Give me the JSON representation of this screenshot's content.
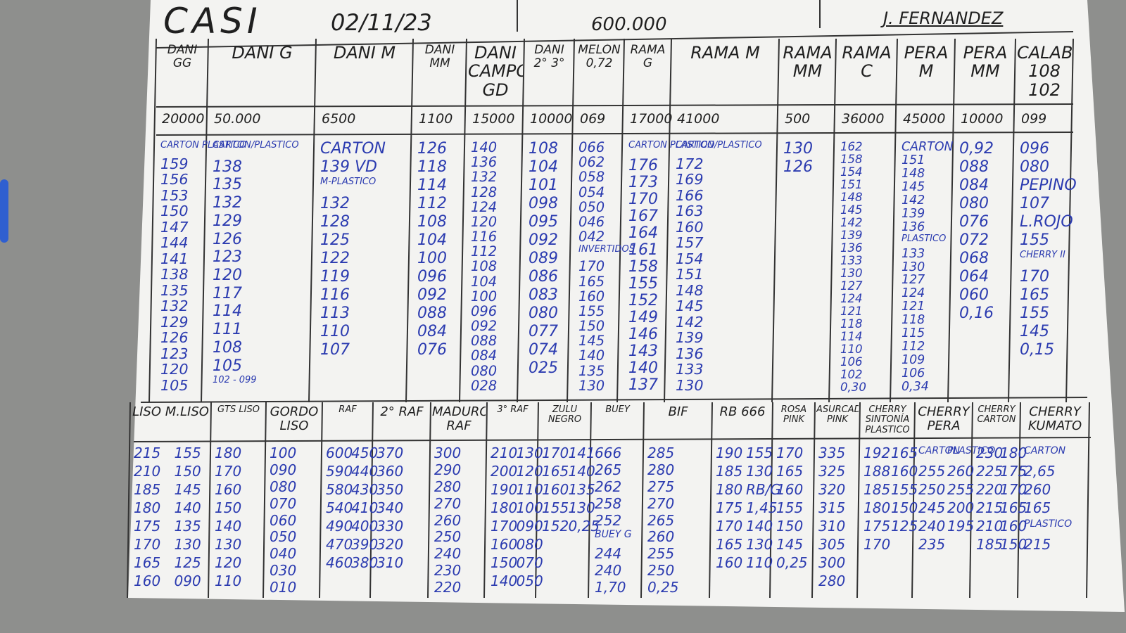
{
  "header": {
    "title": "CASI",
    "date": "02/11/23",
    "total": "600.000",
    "name": "J. FERNANDEZ"
  },
  "top_columns": [
    {
      "label": "DANI GG",
      "amount": "20000",
      "items": [
        "CARTON PLASTICO",
        "159",
        "156",
        "153",
        "150",
        "147",
        "144",
        "141",
        "138",
        "135",
        "132",
        "129",
        "126",
        "123",
        "120",
        "105"
      ]
    },
    {
      "label": "DANI G",
      "amount": "50.000",
      "items": [
        "CARTON/PLASTICO",
        "138",
        "135",
        "132",
        "129",
        "126",
        "123",
        "120",
        "117",
        "114",
        "111",
        "108",
        "105",
        "102 - 099"
      ]
    },
    {
      "label": "DANI M",
      "amount": "6500",
      "items": [
        "CARTON",
        "139 VD",
        "M-PLASTICO",
        "132",
        "128",
        "125",
        "122",
        "119",
        "116",
        "113",
        "110",
        "107"
      ]
    },
    {
      "label": "DANI MM",
      "amount": "1100",
      "items": [
        "126",
        "118",
        "114",
        "112",
        "108",
        "104",
        "100",
        "096",
        "092",
        "088",
        "084",
        "076"
      ]
    },
    {
      "label": "DANI CAMPO GD",
      "amount": "15000",
      "items": [
        "140",
        "136",
        "132",
        "128",
        "124",
        "120",
        "116",
        "112",
        "108",
        "104",
        "100",
        "096",
        "092",
        "088",
        "084",
        "080",
        "028"
      ]
    },
    {
      "label": "DANI 2° 3°",
      "amount": "10000",
      "items": [
        "108",
        "104",
        "101",
        "098",
        "095",
        "092",
        "089",
        "086",
        "083",
        "080",
        "077",
        "074",
        "025"
      ]
    },
    {
      "label": "MELÓN 0,72",
      "amount": "069",
      "items": [
        "066",
        "062",
        "058",
        "054",
        "050",
        "046",
        "042",
        "INVERTIDOS",
        "170",
        "165",
        "160",
        "155",
        "150",
        "145",
        "140",
        "135",
        "130"
      ]
    },
    {
      "label": "RAMA G",
      "amount": "17000",
      "items": [
        "CARTON PLASTICO",
        "176",
        "173",
        "170",
        "167",
        "164",
        "161",
        "158",
        "155",
        "152",
        "149",
        "146",
        "143",
        "140",
        "137"
      ]
    },
    {
      "label": "RAMA M",
      "amount": "41000",
      "items": [
        "CARTON/PLASTICO",
        "172",
        "169",
        "166",
        "163",
        "160",
        "157",
        "154",
        "151",
        "148",
        "145",
        "142",
        "139",
        "136",
        "133",
        "130"
      ]
    },
    {
      "label": "RAMA MM",
      "amount": "500",
      "items": [
        "130",
        "126"
      ]
    },
    {
      "label": "RAMA C",
      "amount": "36000",
      "items": [
        "162",
        "158",
        "154",
        "151",
        "148",
        "145",
        "142",
        "139",
        "136",
        "133",
        "130",
        "127",
        "124",
        "121",
        "118",
        "114",
        "110",
        "106",
        "102",
        "0,30"
      ]
    },
    {
      "label": "PERA M",
      "amount": "45000",
      "items": [
        "CARTON",
        "151",
        "148",
        "145",
        "142",
        "139",
        "136",
        "PLASTICO",
        "133",
        "130",
        "127",
        "124",
        "121",
        "118",
        "115",
        "112",
        "109",
        "106",
        "0,34"
      ]
    },
    {
      "label": "PERA MM",
      "amount": "10000",
      "items": [
        "0,92",
        "088",
        "084",
        "080",
        "076",
        "072",
        "068",
        "064",
        "060",
        "0,16"
      ]
    },
    {
      "label": "CALABACÍN 108 102",
      "amount": "099",
      "items": [
        "096",
        "080",
        "PEPINO",
        "107",
        "L.ROJO",
        "155",
        "CHERRY II",
        "170",
        "165",
        "155",
        "145",
        "0,15"
      ]
    }
  ],
  "bottom_columns": [
    {
      "label": "LISO M.LISO",
      "items": [
        "215",
        "210",
        "185",
        "180",
        "175",
        "170",
        "165",
        "160",
        "155",
        "150",
        "145",
        "140",
        "135",
        "130",
        "125",
        "090"
      ]
    },
    {
      "label": "GTS LISO",
      "items": [
        "180",
        "170",
        "160",
        "150",
        "140",
        "130",
        "120",
        "110"
      ]
    },
    {
      "label": "GORDO LISO",
      "items": [
        "100",
        "090",
        "080",
        "070",
        "060",
        "050",
        "040",
        "030",
        "010"
      ]
    },
    {
      "label": "RAF",
      "items": [
        "600",
        "590",
        "580",
        "540",
        "490",
        "470",
        "460",
        "450",
        "440",
        "430",
        "410",
        "400",
        "390",
        "380"
      ]
    },
    {
      "label": "2° RAF",
      "items": [
        "370",
        "360",
        "350",
        "340",
        "330",
        "320",
        "310"
      ]
    },
    {
      "label": "MADURO RAF",
      "items": [
        "300",
        "290",
        "280",
        "270",
        "260",
        "250",
        "240",
        "230",
        "220"
      ]
    },
    {
      "label": "3° RAF",
      "items": [
        "210",
        "200",
        "190",
        "180",
        "170",
        "160",
        "150",
        "140",
        "130",
        "120",
        "110",
        "100",
        "090",
        "080",
        "070",
        "050"
      ]
    },
    {
      "label": "ZULU NEGRO",
      "items": [
        "170",
        "165",
        "160",
        "155",
        "152",
        "141",
        "140",
        "135",
        "130",
        "0,25"
      ]
    },
    {
      "label": "BUEY",
      "items": [
        "666",
        "265",
        "262",
        "258",
        "252",
        "BUEY G",
        "244",
        "240",
        "1,70"
      ]
    },
    {
      "label": "BIF",
      "items": [
        "285",
        "280",
        "275",
        "270",
        "265",
        "260",
        "255",
        "250",
        "0,25"
      ]
    },
    {
      "label": "RB 666",
      "items": [
        "190",
        "185",
        "180",
        "175",
        "170",
        "165",
        "160",
        "155",
        "130",
        "RB/G",
        "1,45",
        "140",
        "130",
        "110"
      ]
    },
    {
      "label": "ROSA PINK",
      "items": [
        "170",
        "165",
        "160",
        "155",
        "150",
        "145",
        "0,25"
      ]
    },
    {
      "label": "ASURCADO PINK",
      "items": [
        "335",
        "325",
        "320",
        "315",
        "310",
        "305",
        "300",
        "280"
      ]
    },
    {
      "label": "CHERRY SINTONÍA PLASTICO",
      "items": [
        "192",
        "188",
        "185",
        "180",
        "175",
        "170",
        "165",
        "160",
        "155",
        "150",
        "125"
      ]
    },
    {
      "label": "CHERRY PERA",
      "items": [
        "CARTON",
        "255",
        "250",
        "245",
        "240",
        "235",
        "PLASTICO",
        "260",
        "255",
        "200",
        "195"
      ]
    },
    {
      "label": "CHERRY CARTON",
      "items": [
        "230",
        "225",
        "220",
        "215",
        "210",
        "185",
        "180",
        "175",
        "170",
        "165",
        "160",
        "150"
      ]
    },
    {
      "label": "CHERRY KUMATO",
      "items": [
        "CARTON",
        "2,65",
        "260",
        "165",
        "PLASTICO",
        "215"
      ]
    }
  ]
}
